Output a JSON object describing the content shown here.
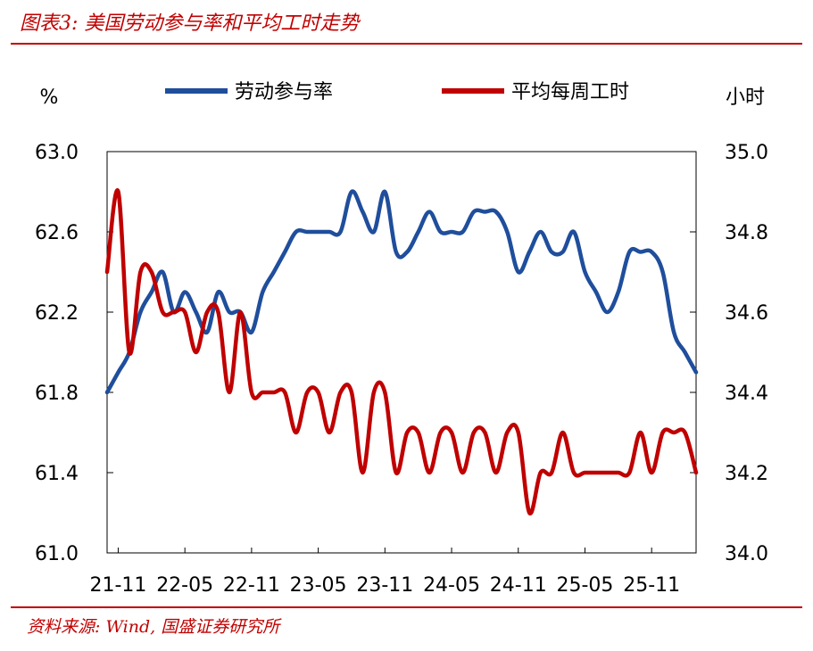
{
  "header": {
    "title": "图表3: 美国劳动参与率和平均工时走势"
  },
  "footer": {
    "source": "资料来源: Wind, 国盛证券研究所"
  },
  "colors": {
    "accent": "#c00000",
    "series_blue": "#1f4e9c",
    "series_red": "#c00000"
  },
  "chart_data": {
    "type": "line",
    "y_left": {
      "unit": "%",
      "range": [
        61.0,
        63.0
      ],
      "ticks": [
        "63.0",
        "62.6",
        "62.2",
        "61.8",
        "61.4",
        "61.0"
      ]
    },
    "y_right": {
      "unit": "小时",
      "range": [
        34.0,
        35.0
      ],
      "ticks": [
        "35.0",
        "34.8",
        "34.6",
        "34.4",
        "34.2",
        "34.0"
      ]
    },
    "x_ticks": [
      "21-11",
      "22-05",
      "22-11",
      "23-05",
      "23-11",
      "24-05",
      "24-11",
      "25-05",
      "25-11"
    ],
    "grid": false,
    "legend_position": "top",
    "series": [
      {
        "name": "劳动参与率",
        "axis": "left",
        "values": [
          61.8,
          61.9,
          62.0,
          62.2,
          62.3,
          62.4,
          62.2,
          62.3,
          62.2,
          62.1,
          62.3,
          62.2,
          62.2,
          62.1,
          62.3,
          62.4,
          62.5,
          62.6,
          62.6,
          62.6,
          62.6,
          62.6,
          62.8,
          62.7,
          62.6,
          62.8,
          62.5,
          62.5,
          62.6,
          62.7,
          62.6,
          62.6,
          62.6,
          62.7,
          62.7,
          62.7,
          62.6,
          62.4,
          62.5,
          62.6,
          62.5,
          62.5,
          62.6,
          62.4,
          62.3,
          62.2,
          62.3,
          62.5,
          62.5,
          62.5,
          62.4,
          62.1,
          62.0,
          61.9
        ]
      },
      {
        "name": "平均每周工时",
        "axis": "right",
        "values": [
          34.7,
          34.9,
          34.5,
          34.7,
          34.7,
          34.6,
          34.6,
          34.6,
          34.5,
          34.6,
          34.6,
          34.4,
          34.6,
          34.4,
          34.4,
          34.4,
          34.4,
          34.3,
          34.4,
          34.4,
          34.3,
          34.4,
          34.4,
          34.2,
          34.4,
          34.4,
          34.2,
          34.3,
          34.3,
          34.2,
          34.3,
          34.3,
          34.2,
          34.3,
          34.3,
          34.2,
          34.3,
          34.3,
          34.1,
          34.2,
          34.2,
          34.3,
          34.2,
          34.2,
          34.2,
          34.2,
          34.2,
          34.2,
          34.3,
          34.2,
          34.3,
          34.3,
          34.3,
          34.2
        ]
      }
    ]
  }
}
